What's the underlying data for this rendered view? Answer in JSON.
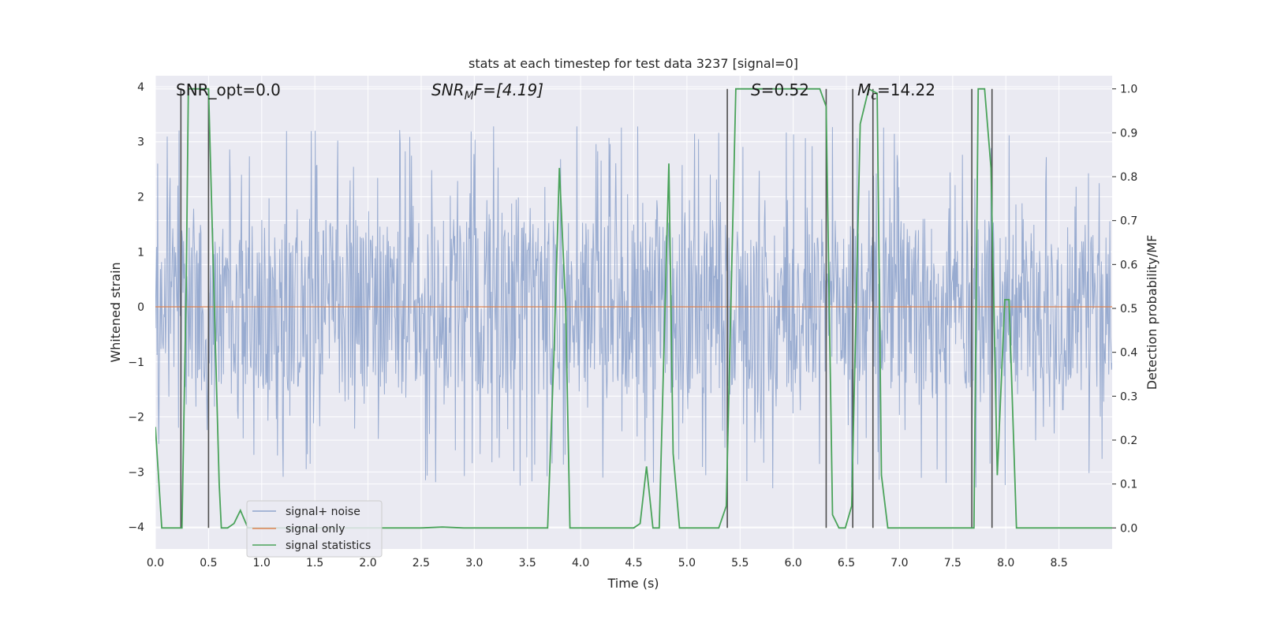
{
  "chart_data": {
    "type": "line",
    "title": "stats at each timestep for test data 3237 [signal=0]",
    "xlabel": "Time (s)",
    "ylabel": "Whitened strain",
    "y2label": "Detection probability/MF",
    "xlim": [
      0,
      9.0
    ],
    "ylim": [
      -4.4,
      4.2
    ],
    "y2lim": [
      -0.048,
      1.03
    ],
    "xticks": [
      "0.0",
      "0.5",
      "1.0",
      "1.5",
      "2.0",
      "2.5",
      "3.0",
      "3.5",
      "4.0",
      "4.5",
      "5.0",
      "5.5",
      "6.0",
      "6.5",
      "7.0",
      "7.5",
      "8.0",
      "8.5"
    ],
    "yticks": [
      "−4",
      "−3",
      "−2",
      "−1",
      "0",
      "1",
      "2",
      "3",
      "4"
    ],
    "y2ticks": [
      "0.0",
      "0.1",
      "0.2",
      "0.3",
      "0.4",
      "0.5",
      "0.6",
      "0.7",
      "0.8",
      "0.9",
      "1.0"
    ],
    "annotations": {
      "snr_opt": "SNR_opt=0.0",
      "snr_mf_sym": "SNR",
      "snr_mf_sub": "M",
      "snr_mf_rest": "F=[4.19]",
      "s_sym": "S",
      "s_rest": "=0.52",
      "mc_sym": "M",
      "mc_sub": "c",
      "mc_rest": "=14.22"
    },
    "legend": {
      "location": "lower-left",
      "entries": [
        "signal+ noise",
        "signal only",
        "signal statistics"
      ]
    },
    "colors": {
      "noise": "#8fa4cc",
      "signal": "#dd8452",
      "stats": "#4aa35a",
      "vline": "#4d4d4d",
      "plot_bg": "#eaeaf2",
      "grid": "#ffffff"
    },
    "series": [
      {
        "name": "signal+ noise",
        "description": "whitened noise, band roughly ±1.6 with spikes up to ±3.3",
        "envelope": 1.6,
        "max_spike": 3.3
      },
      {
        "name": "signal only",
        "x": [
          0,
          9.0
        ],
        "y": [
          0,
          0
        ]
      },
      {
        "name": "signal statistics",
        "axis": "right",
        "x": [
          0.0,
          0.06,
          0.25,
          0.29,
          0.31,
          0.5,
          0.55,
          0.6,
          0.62,
          0.68,
          0.74,
          0.8,
          0.87,
          0.95,
          1.1,
          2.5,
          2.7,
          2.9,
          3.69,
          3.75,
          3.8,
          3.86,
          3.9,
          4.5,
          4.56,
          4.62,
          4.68,
          4.74,
          4.83,
          4.87,
          4.93,
          5.0,
          5.3,
          5.37,
          5.46,
          6.25,
          6.31,
          6.37,
          6.43,
          6.49,
          6.55,
          6.63,
          6.71,
          6.79,
          6.83,
          6.89,
          6.95,
          7.7,
          7.74,
          7.8,
          7.86,
          7.92,
          7.99,
          8.03,
          8.1,
          8.13,
          9.0
        ],
        "y": [
          0.23,
          0.0,
          0.0,
          0.55,
          1.0,
          1.0,
          0.55,
          0.1,
          0.0,
          0.0,
          0.01,
          0.04,
          0.0,
          0.0,
          0.0,
          0.0,
          0.002,
          0.0,
          0.0,
          0.4,
          0.82,
          0.5,
          0.0,
          0.0,
          0.01,
          0.14,
          0.0,
          0.0,
          0.83,
          0.17,
          0.0,
          0.0,
          0.0,
          0.05,
          1.0,
          1.0,
          0.96,
          0.03,
          0.0,
          0.0,
          0.05,
          0.92,
          1.0,
          0.99,
          0.12,
          0.0,
          0.0,
          0.0,
          1.0,
          1.0,
          0.82,
          0.12,
          0.52,
          0.52,
          0.0,
          0.0,
          0.0
        ]
      }
    ],
    "vertical_lines_x": [
      0.24,
      0.5,
      5.38,
      6.31,
      6.56,
      6.75,
      7.68,
      7.87
    ]
  }
}
